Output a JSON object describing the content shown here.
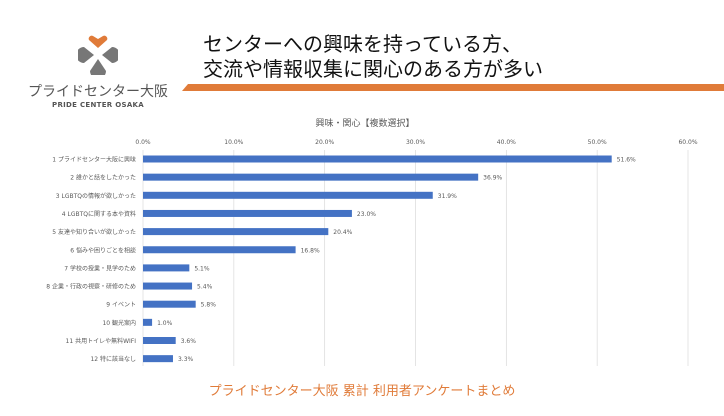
{
  "logo": {
    "name_ja": "プライドセンター大阪",
    "name_en": "PRIDE CENTER OSAKA",
    "heart_color": "#e07b39"
  },
  "title": {
    "line1": "センターへの興味を持っている方、",
    "line2": "交流や情報収集に関心のある方が多い"
  },
  "footer": "プライドセンター大阪 累計 利用者アンケートまとめ",
  "colors": {
    "accent": "#e07b39",
    "bar": "#4472c4"
  },
  "chart_data": {
    "type": "bar",
    "orientation": "horizontal",
    "title": "興味・関心【複数選択】",
    "categories": [
      "1 プライドセンター大阪に興味",
      "2 誰かと話をしたかった",
      "3 LGBTQの情報が欲しかった",
      "4 LGBTQに関する本や資料",
      "5 友達や知り合いが欲しかった",
      "6 悩みや困りごとを相談",
      "7 学校の授業・見学のため",
      "8 企業・行政の視察・研修のため",
      "9 イベント",
      "10 観光案内",
      "11 共用トイレや無料WIFI",
      "12 特に該当なし"
    ],
    "values": [
      51.6,
      36.9,
      31.9,
      23.0,
      20.4,
      16.8,
      5.1,
      5.4,
      5.8,
      1.0,
      3.6,
      3.3
    ],
    "xlim": [
      0,
      60
    ],
    "xticks": [
      "0.0%",
      "10.0%",
      "20.0%",
      "30.0%",
      "40.0%",
      "50.0%",
      "60.0%"
    ],
    "grid": true
  }
}
